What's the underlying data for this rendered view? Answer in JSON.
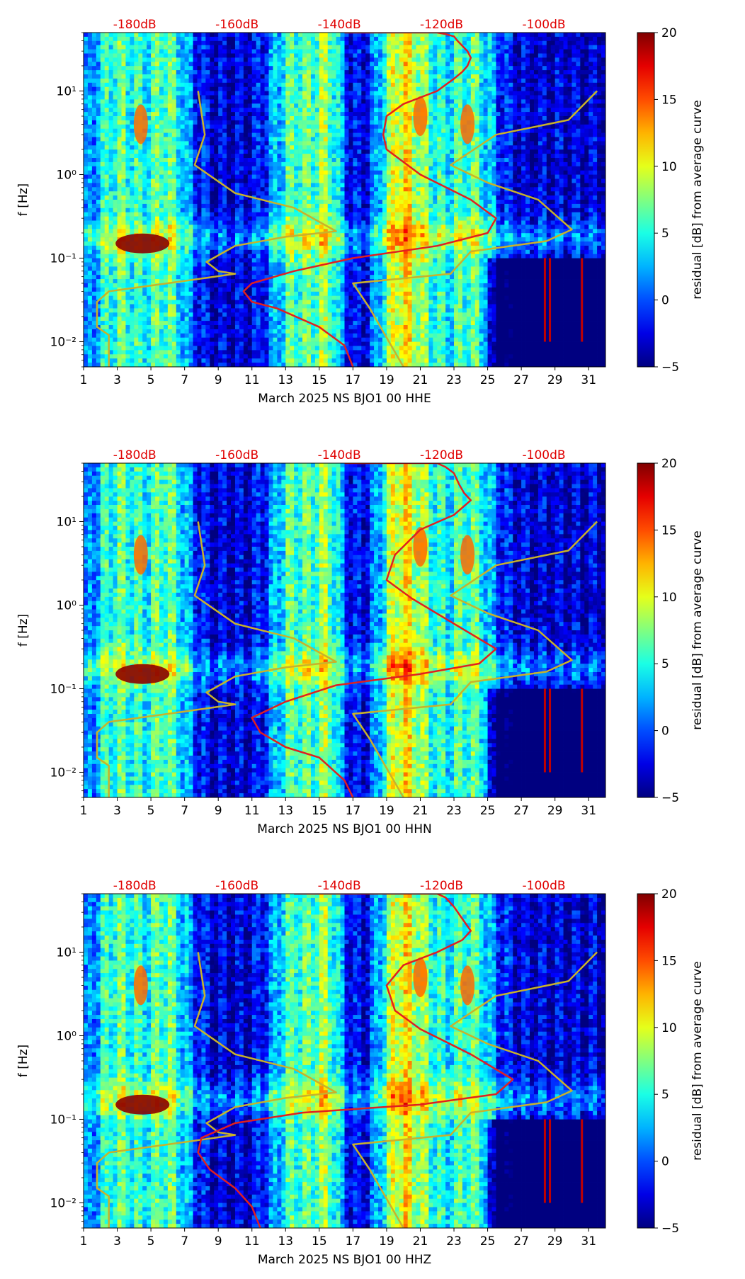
{
  "chart_data": [
    {
      "type": "heatmap",
      "xlabel": "March 2025 NS BJO1 00 HHE",
      "ylabel": "f [Hz]",
      "x_ticks": [
        "1",
        "3",
        "5",
        "7",
        "9",
        "11",
        "13",
        "15",
        "17",
        "19",
        "21",
        "23",
        "25",
        "27",
        "29",
        "31"
      ],
      "xlim": [
        1,
        32
      ],
      "y_ticks": [
        "10⁻²",
        "10⁻¹",
        "10⁰",
        "10¹"
      ],
      "y_tick_values": [
        0.01,
        0.1,
        1,
        10
      ],
      "ylim": [
        0.005,
        50
      ],
      "y_scale": "log",
      "top_ticks": [
        "-180dB",
        "-160dB",
        "-140dB",
        "-120dB",
        "-100dB"
      ],
      "top_tick_values": [
        -180,
        -160,
        -140,
        -120,
        -100
      ],
      "colorbar": {
        "label": "residual [dB] from average curve",
        "ticks": [
          "20",
          "15",
          "10",
          "5",
          "0",
          "−5"
        ],
        "range": [
          -5,
          20
        ],
        "colormap": "jet"
      },
      "curve_colors": {
        "red": "#e02020",
        "yellow": "#c9b22a"
      },
      "noise_model_low_x": [
        [
          7.8,
          10
        ],
        [
          8.2,
          3
        ],
        [
          7.6,
          1.3
        ],
        [
          10,
          0.6
        ],
        [
          13.5,
          0.4
        ],
        [
          16,
          0.21
        ],
        [
          13,
          0.18
        ],
        [
          10,
          0.14
        ],
        [
          8.3,
          0.09
        ],
        [
          9,
          0.07
        ],
        [
          10,
          0.065
        ],
        [
          6,
          0.05
        ],
        [
          2.5,
          0.04
        ],
        [
          1.8,
          0.03
        ],
        [
          1.8,
          0.015
        ],
        [
          2.5,
          0.012
        ],
        [
          2.5,
          0.005
        ]
      ],
      "noise_model_high_x": [
        [
          31.5,
          10
        ],
        [
          29.8,
          4.5
        ],
        [
          25.5,
          3
        ],
        [
          22.8,
          1.3
        ],
        [
          25,
          0.8
        ],
        [
          28,
          0.5
        ],
        [
          30,
          0.22
        ],
        [
          28.5,
          0.16
        ],
        [
          24,
          0.12
        ],
        [
          22.8,
          0.065
        ],
        [
          17,
          0.05
        ],
        [
          18,
          0.025
        ],
        [
          20,
          0.005
        ]
      ],
      "median_psd_x": [
        [
          16.5,
          50
        ],
        [
          22,
          50
        ],
        [
          22.5,
          48
        ],
        [
          23,
          45
        ],
        [
          23.2,
          40
        ],
        [
          23.8,
          30
        ],
        [
          24,
          25
        ],
        [
          23.8,
          20
        ],
        [
          23.5,
          17
        ],
        [
          23,
          14
        ],
        [
          22,
          10
        ],
        [
          20,
          7
        ],
        [
          19,
          5
        ],
        [
          18.8,
          3
        ],
        [
          19,
          2
        ],
        [
          21,
          1
        ],
        [
          24,
          0.5
        ],
        [
          25.5,
          0.3
        ],
        [
          25,
          0.2
        ],
        [
          22,
          0.14
        ],
        [
          17,
          0.1
        ],
        [
          13.5,
          0.07
        ],
        [
          11,
          0.05
        ],
        [
          10.5,
          0.04
        ],
        [
          11,
          0.03
        ],
        [
          12.5,
          0.025
        ],
        [
          15,
          0.015
        ],
        [
          16.5,
          0.009
        ],
        [
          17,
          0.005
        ]
      ]
    },
    {
      "type": "heatmap",
      "xlabel": "March 2025 NS BJO1 00 HHN",
      "ylabel": "f [Hz]",
      "x_ticks": [
        "1",
        "3",
        "5",
        "7",
        "9",
        "11",
        "13",
        "15",
        "17",
        "19",
        "21",
        "23",
        "25",
        "27",
        "29",
        "31"
      ],
      "xlim": [
        1,
        32
      ],
      "y_ticks": [
        "10⁻²",
        "10⁻¹",
        "10⁰",
        "10¹"
      ],
      "y_tick_values": [
        0.01,
        0.1,
        1,
        10
      ],
      "ylim": [
        0.005,
        50
      ],
      "y_scale": "log",
      "top_ticks": [
        "-180dB",
        "-160dB",
        "-140dB",
        "-120dB",
        "-100dB"
      ],
      "top_tick_values": [
        -180,
        -160,
        -140,
        -120,
        -100
      ],
      "colorbar": {
        "label": "residual [dB] from average curve",
        "ticks": [
          "20",
          "15",
          "10",
          "5",
          "0",
          "−5"
        ],
        "range": [
          -5,
          20
        ],
        "colormap": "jet"
      },
      "curve_colors": {
        "red": "#e02020",
        "yellow": "#c9b22a"
      },
      "noise_model_low_x": [
        [
          7.8,
          10
        ],
        [
          8.2,
          3
        ],
        [
          7.6,
          1.3
        ],
        [
          10,
          0.6
        ],
        [
          13.5,
          0.4
        ],
        [
          16,
          0.21
        ],
        [
          13,
          0.18
        ],
        [
          10,
          0.14
        ],
        [
          8.3,
          0.09
        ],
        [
          9,
          0.07
        ],
        [
          10,
          0.065
        ],
        [
          6,
          0.05
        ],
        [
          2.5,
          0.04
        ],
        [
          1.8,
          0.03
        ],
        [
          1.8,
          0.015
        ],
        [
          2.5,
          0.012
        ],
        [
          2.5,
          0.005
        ]
      ],
      "noise_model_high_x": [
        [
          31.5,
          10
        ],
        [
          29.8,
          4.5
        ],
        [
          25.5,
          3
        ],
        [
          22.8,
          1.3
        ],
        [
          25,
          0.8
        ],
        [
          28,
          0.5
        ],
        [
          30,
          0.22
        ],
        [
          28.5,
          0.16
        ],
        [
          24,
          0.12
        ],
        [
          22.8,
          0.065
        ],
        [
          17,
          0.05
        ],
        [
          18,
          0.025
        ],
        [
          20,
          0.005
        ]
      ],
      "median_psd_x": [
        [
          16.5,
          50
        ],
        [
          22,
          50
        ],
        [
          22.5,
          45
        ],
        [
          23,
          38
        ],
        [
          23.3,
          28
        ],
        [
          23.6,
          22
        ],
        [
          24,
          18
        ],
        [
          23,
          12
        ],
        [
          21,
          8
        ],
        [
          19.5,
          4
        ],
        [
          19,
          2
        ],
        [
          20.5,
          1.2
        ],
        [
          23,
          0.6
        ],
        [
          25.5,
          0.3
        ],
        [
          24.5,
          0.2
        ],
        [
          21,
          0.15
        ],
        [
          16,
          0.11
        ],
        [
          13,
          0.07
        ],
        [
          11,
          0.045
        ],
        [
          11.5,
          0.03
        ],
        [
          13,
          0.02
        ],
        [
          15,
          0.015
        ],
        [
          16.5,
          0.008
        ],
        [
          17,
          0.005
        ]
      ]
    },
    {
      "type": "heatmap",
      "xlabel": "March 2025 NS BJO1 00 HHZ",
      "ylabel": "f [Hz]",
      "x_ticks": [
        "1",
        "3",
        "5",
        "7",
        "9",
        "11",
        "13",
        "15",
        "17",
        "19",
        "21",
        "23",
        "25",
        "27",
        "29",
        "31"
      ],
      "xlim": [
        1,
        32
      ],
      "y_ticks": [
        "10⁻²",
        "10⁻¹",
        "10⁰",
        "10¹"
      ],
      "y_tick_values": [
        0.01,
        0.1,
        1,
        10
      ],
      "ylim": [
        0.005,
        50
      ],
      "y_scale": "log",
      "top_ticks": [
        "-180dB",
        "-160dB",
        "-140dB",
        "-120dB",
        "-100dB"
      ],
      "top_tick_values": [
        -180,
        -160,
        -140,
        -120,
        -100
      ],
      "colorbar": {
        "label": "residual [dB] from average curve",
        "ticks": [
          "20",
          "15",
          "10",
          "5",
          "0",
          "−5"
        ],
        "range": [
          -5,
          20
        ],
        "colormap": "jet"
      },
      "curve_colors": {
        "red": "#e02020",
        "yellow": "#c9b22a"
      },
      "noise_model_low_x": [
        [
          7.8,
          10
        ],
        [
          8.2,
          3
        ],
        [
          7.6,
          1.3
        ],
        [
          10,
          0.6
        ],
        [
          13.5,
          0.4
        ],
        [
          16,
          0.21
        ],
        [
          13,
          0.18
        ],
        [
          10,
          0.14
        ],
        [
          8.3,
          0.09
        ],
        [
          9,
          0.07
        ],
        [
          10,
          0.065
        ],
        [
          6,
          0.05
        ],
        [
          2.5,
          0.04
        ],
        [
          1.8,
          0.03
        ],
        [
          1.8,
          0.015
        ],
        [
          2.5,
          0.012
        ],
        [
          2.5,
          0.005
        ]
      ],
      "noise_model_high_x": [
        [
          31.5,
          10
        ],
        [
          29.8,
          4.5
        ],
        [
          25.5,
          3
        ],
        [
          22.8,
          1.3
        ],
        [
          25,
          0.8
        ],
        [
          28,
          0.5
        ],
        [
          30,
          0.22
        ],
        [
          28.5,
          0.16
        ],
        [
          24,
          0.12
        ],
        [
          22.8,
          0.065
        ],
        [
          17,
          0.05
        ],
        [
          18,
          0.025
        ],
        [
          20,
          0.005
        ]
      ],
      "median_psd_x": [
        [
          13.5,
          50
        ],
        [
          22,
          50
        ],
        [
          22.5,
          45
        ],
        [
          23,
          35
        ],
        [
          23.5,
          25
        ],
        [
          24,
          18
        ],
        [
          23.5,
          14
        ],
        [
          22,
          10
        ],
        [
          20,
          7
        ],
        [
          19,
          4
        ],
        [
          19.5,
          2
        ],
        [
          21,
          1.2
        ],
        [
          24,
          0.6
        ],
        [
          26.5,
          0.3
        ],
        [
          25.5,
          0.2
        ],
        [
          21,
          0.15
        ],
        [
          14,
          0.12
        ],
        [
          10,
          0.09
        ],
        [
          8,
          0.06
        ],
        [
          7.8,
          0.04
        ],
        [
          8.5,
          0.025
        ],
        [
          10,
          0.015
        ],
        [
          11,
          0.009
        ],
        [
          11.5,
          0.005
        ]
      ]
    }
  ]
}
